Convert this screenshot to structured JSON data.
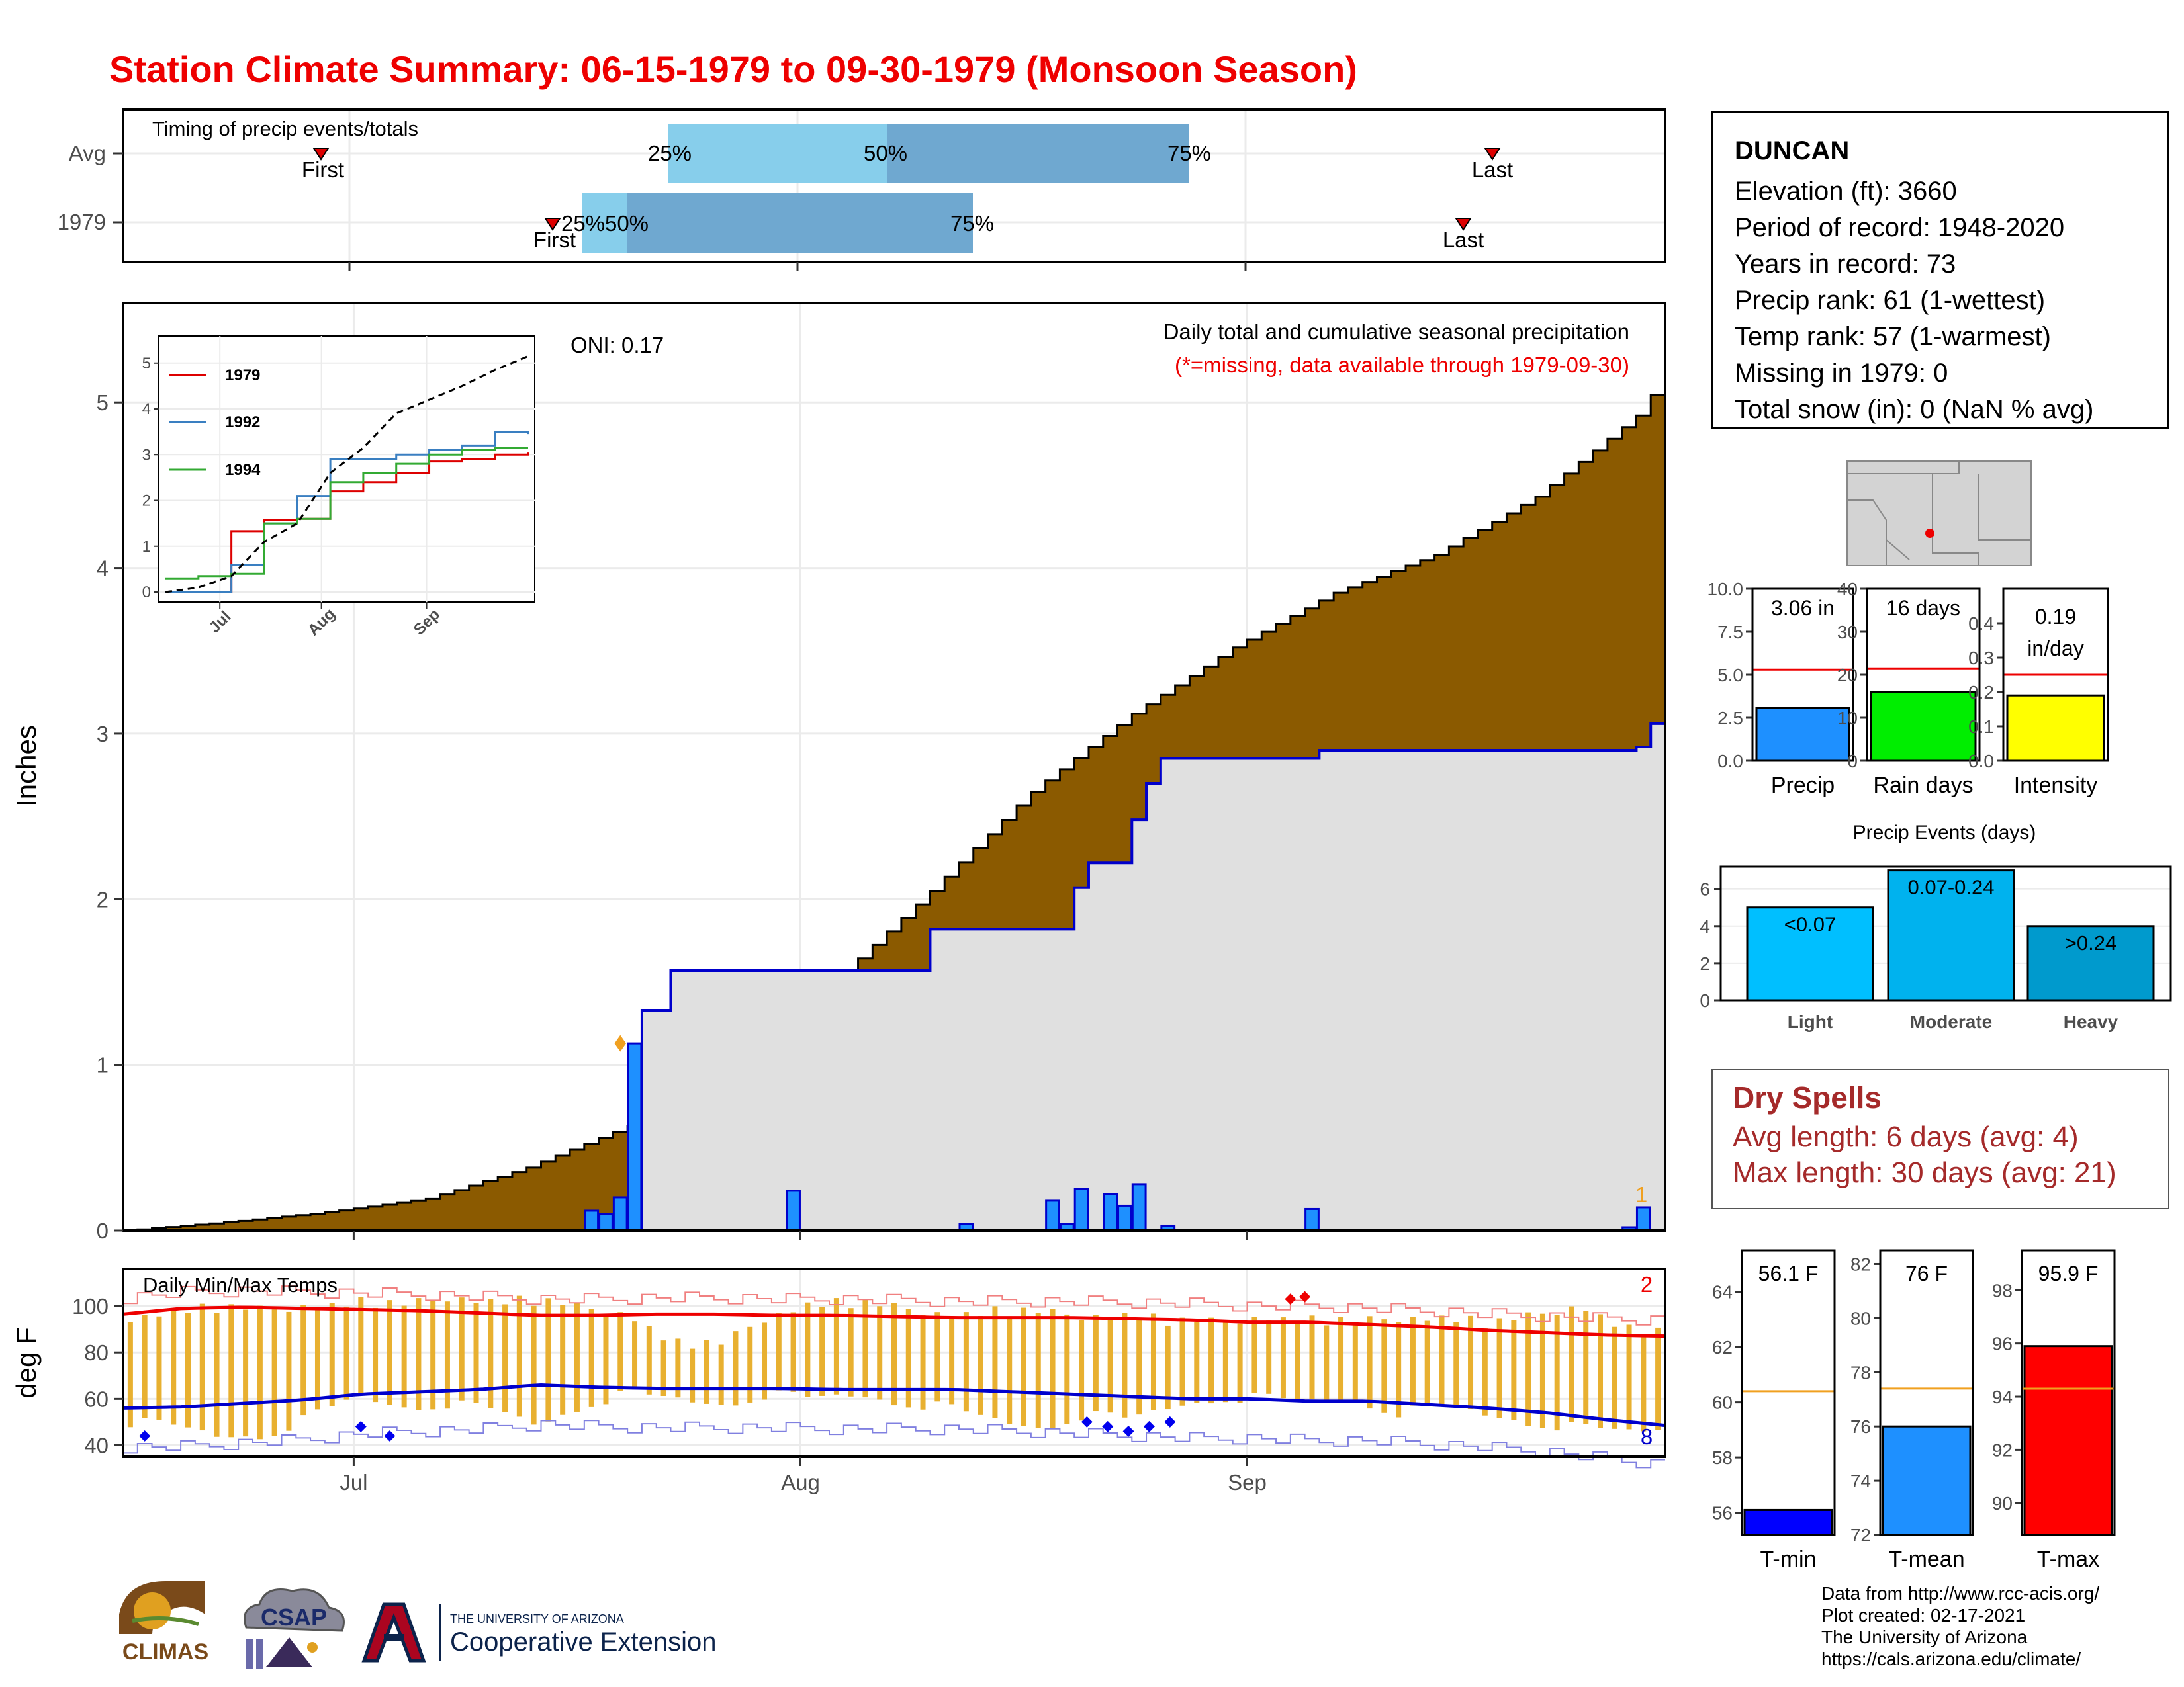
{
  "title": "Station Climate Summary: 06-15-1979 to 09-30-1979 (Monsoon Season)",
  "timing": {
    "title": "Timing of precip events/totals",
    "rows": [
      "Avg",
      "1979"
    ],
    "avg": {
      "first": "First",
      "p25": "25%",
      "p50": "50%",
      "p75": "75%",
      "last": "Last"
    },
    "y1979": {
      "first": "First",
      "p25": "25%",
      "p50": "50%",
      "p75": "75%",
      "last": "Last"
    },
    "colors": {
      "light": "#87ceeb",
      "dark": "#6fa8d0",
      "marker": "#dd0000"
    }
  },
  "precip": {
    "title": "Daily total and cumulative seasonal precipitation",
    "subtitle": "(*=missing, data available through 1979-09-30)",
    "oni": "ONI: 0.17",
    "ylabel": "Inches",
    "corner": "1",
    "colors": {
      "avg_fill": "#8b5a00",
      "green": "#1a8a1a",
      "gray": "#e0e0e0",
      "bars": "#1e90ff",
      "line": "#0000cc"
    }
  },
  "inset": {
    "legend": [
      "1979",
      "1992",
      "1994"
    ],
    "colors": [
      "#dd0000",
      "#3a7fc1",
      "#33aa33"
    ],
    "xticks": [
      "Jul",
      "Aug",
      "Sep"
    ],
    "yticks": [
      "0",
      "1",
      "2",
      "3",
      "4",
      "5"
    ]
  },
  "temps": {
    "title": "Daily Min/Max Temps",
    "ylabel": "deg F",
    "corner_max": "2",
    "corner_min": "8",
    "yticks": [
      "40",
      "60",
      "80",
      "100"
    ],
    "xticks": [
      "Jul",
      "Aug",
      "Sep"
    ],
    "colors": {
      "bars": "#e8b030",
      "max": "#ee0000",
      "min": "#0000cc",
      "rec_max": "#f08080",
      "rec_min": "#8080e0"
    }
  },
  "station": {
    "name": "DUNCAN",
    "elevation": "Elevation (ft): 3660",
    "period": "Period of record: 1948-2020",
    "years": "Years in record: 73",
    "precip_rank": "Precip rank: 61 (1-wettest)",
    "temp_rank": "Temp rank: 57 (1-warmest)",
    "missing": "Missing in 1979: 0",
    "snow": "Total snow (in): 0 (NaN % avg)"
  },
  "summary_bars": [
    {
      "label": "Precip",
      "value_text": "3.06 in",
      "value": 3.06,
      "avg": 5.3,
      "ymax": 10,
      "yticks": [
        "0.0",
        "2.5",
        "5.0",
        "7.5",
        "10.0"
      ],
      "color": "#1e90ff"
    },
    {
      "label": "Rain days",
      "value_text": "16 days",
      "value": 16,
      "avg": 21.5,
      "ymax": 40,
      "yticks": [
        "0",
        "10",
        "20",
        "30",
        "40"
      ],
      "color": "#00ee00"
    },
    {
      "label": "Intensity",
      "value_text": "0.19 in/day",
      "value": 0.19,
      "avg": 0.25,
      "ymax": 0.5,
      "yticks": [
        "0.0",
        "0.1",
        "0.2",
        "0.3",
        "0.4"
      ],
      "color": "#ffff00"
    }
  ],
  "events": {
    "title": "Precip Events (days)",
    "categories": [
      "Light",
      "Moderate",
      "Heavy"
    ],
    "labels": [
      "<0.07",
      "0.07-0.24",
      ">0.24"
    ],
    "values": [
      5,
      7,
      4
    ],
    "yticks": [
      "0",
      "2",
      "4",
      "6"
    ],
    "colors": [
      "#00bfff",
      "#00b2ee",
      "#009acd"
    ]
  },
  "dry": {
    "title": "Dry Spells",
    "avg": "Avg length: 6 days (avg: 4)",
    "max": "Max length: 30 days (avg: 21)"
  },
  "temp_bars": [
    {
      "label": "T-min",
      "value_text": "56.1 F",
      "value": 56.1,
      "avg": 60.4,
      "ylim": [
        55.2,
        65.5
      ],
      "yticks": [
        "56",
        "58",
        "60",
        "62",
        "64"
      ],
      "color": "#0000ff"
    },
    {
      "label": "T-mean",
      "value_text": "76 F",
      "value": 76,
      "avg": 77.4,
      "ylim": [
        72,
        82.5
      ],
      "yticks": [
        "72",
        "74",
        "76",
        "78",
        "80",
        "82"
      ],
      "color": "#1e90ff"
    },
    {
      "label": "T-max",
      "value_text": "95.9 F",
      "value": 95.9,
      "avg": 94.3,
      "ylim": [
        88.8,
        99.5
      ],
      "yticks": [
        "90",
        "92",
        "94",
        "96",
        "98"
      ],
      "color": "#ff0000"
    }
  ],
  "credits": {
    "l1": "Data from http://www.rcc-acis.org/",
    "l2": "Plot created: 02-17-2021",
    "l3": "The University of Arizona",
    "l4": "https://cals.arizona.edu/climate/"
  },
  "logos": {
    "climas": "CLIMAS",
    "csap": "CSAP",
    "ua_small": "THE UNIVERSITY OF ARIZONA",
    "ua_big": "Cooperative Extension"
  },
  "chart_data": [
    {
      "type": "area",
      "title": "Daily total and cumulative seasonal precipitation",
      "ylabel": "Inches",
      "xlim": [
        "1979-06-15",
        "1979-09-30"
      ],
      "ylim": [
        0,
        5.6
      ],
      "xticks": [
        "Jul",
        "Aug",
        "Sep"
      ],
      "yticks": [
        0,
        1,
        2,
        3,
        4,
        5
      ],
      "series": [
        {
          "name": "Avg",
          "x": [
            0,
            7,
            14,
            21,
            28,
            35,
            42,
            49,
            56,
            63,
            70,
            77,
            84,
            91,
            98,
            105,
            107
          ],
          "values": [
            0.0,
            0.05,
            0.11,
            0.19,
            0.38,
            0.63,
            1.12,
            1.48,
            2.05,
            2.65,
            3.12,
            3.52,
            3.85,
            4.08,
            4.43,
            4.92,
            5.17
          ]
        },
        {
          "name": "1979",
          "x": [
            0,
            33,
            34,
            35,
            36,
            37,
            38,
            45,
            55,
            56,
            65,
            66,
            67,
            70,
            71,
            72,
            82,
            83,
            105,
            106,
            107
          ],
          "values": [
            0.0,
            0.0,
            0.0,
            0.0,
            1.33,
            1.33,
            1.57,
            1.57,
            1.57,
            1.82,
            1.82,
            2.07,
            2.22,
            2.48,
            2.7,
            2.85,
            2.85,
            2.9,
            2.92,
            3.06,
            3.06
          ]
        }
      ],
      "daily": {
        "x": [
          32,
          33,
          34,
          35,
          46,
          58,
          64,
          65,
          66,
          68,
          69,
          70,
          72,
          82,
          104,
          105
        ],
        "values": [
          0.12,
          0.1,
          0.2,
          1.13,
          0.24,
          0.04,
          0.18,
          0.04,
          0.25,
          0.22,
          0.15,
          0.28,
          0.03,
          0.13,
          0.02,
          0.14
        ]
      }
    },
    {
      "type": "line",
      "title": "",
      "xticks": [
        "Jul",
        "Aug",
        "Sep"
      ],
      "ylim": [
        0,
        5.5
      ],
      "series": [
        {
          "name": "1979",
          "values": [
            0.0,
            0.0,
            1.33,
            1.57,
            1.6,
            2.2,
            2.4,
            2.6,
            2.85,
            2.9,
            3.0,
            3.06
          ]
        },
        {
          "name": "1992",
          "values": [
            0.0,
            0.0,
            0.6,
            1.5,
            2.1,
            2.9,
            2.9,
            3.0,
            3.1,
            3.2,
            3.5,
            3.45
          ]
        },
        {
          "name": "1994",
          "values": [
            0.3,
            0.35,
            0.4,
            1.5,
            1.6,
            2.4,
            2.6,
            2.8,
            3.0,
            3.1,
            3.15,
            3.15
          ]
        },
        {
          "name": "Avg",
          "values": [
            0.0,
            0.1,
            0.35,
            1.1,
            1.5,
            2.6,
            3.15,
            3.9,
            4.2,
            4.5,
            4.85,
            5.15
          ]
        }
      ]
    },
    {
      "type": "bar",
      "title": "Daily Min/Max Temps",
      "ylabel": "deg F",
      "ylim": [
        35,
        116
      ],
      "yticks": [
        40,
        60,
        80,
        100
      ],
      "xticks": [
        "Jul",
        "Aug",
        "Sep"
      ],
      "series": [
        {
          "name": "Tmax",
          "values": [
            95,
            99,
            99,
            98,
            101,
            102,
            100,
            104,
            103,
            102,
            99,
            97,
            84,
            83,
            95,
            102,
            101,
            99,
            97,
            98,
            97,
            96,
            97,
            93,
            93,
            96,
            94,
            93,
            95,
            96,
            92,
            96,
            101,
            90,
            88
          ]
        },
        {
          "name": "Tmin",
          "values": [
            50,
            48,
            44,
            45,
            52,
            61,
            57,
            58,
            55,
            49,
            58,
            62,
            60,
            58,
            62,
            60,
            62,
            59,
            56,
            51,
            48,
            53,
            51,
            57,
            61,
            60,
            59,
            60,
            54,
            57,
            53,
            50,
            47,
            46,
            48
          ]
        },
        {
          "name": "Normal max",
          "values": [
            96.5,
            99,
            99.5,
            99,
            98.5,
            98,
            97,
            96,
            96,
            96.5,
            96.5,
            96,
            96,
            95.5,
            95,
            95,
            95,
            94.5,
            94,
            93,
            93,
            92,
            91,
            89.5,
            88.5,
            87.5,
            87
          ]
        },
        {
          "name": "Normal min",
          "values": [
            56,
            56.5,
            58,
            59.5,
            62,
            63,
            64,
            66,
            65,
            64.5,
            64.5,
            64.5,
            64,
            64,
            64,
            63,
            62,
            61,
            60,
            60,
            59,
            59,
            57.5,
            56,
            54,
            51,
            48.5
          ]
        }
      ]
    },
    {
      "type": "bar",
      "title": "Precip Events (days)",
      "categories": [
        "Light",
        "Moderate",
        "Heavy"
      ],
      "values": [
        5,
        7,
        4
      ],
      "ylim": [
        0,
        7
      ]
    }
  ]
}
